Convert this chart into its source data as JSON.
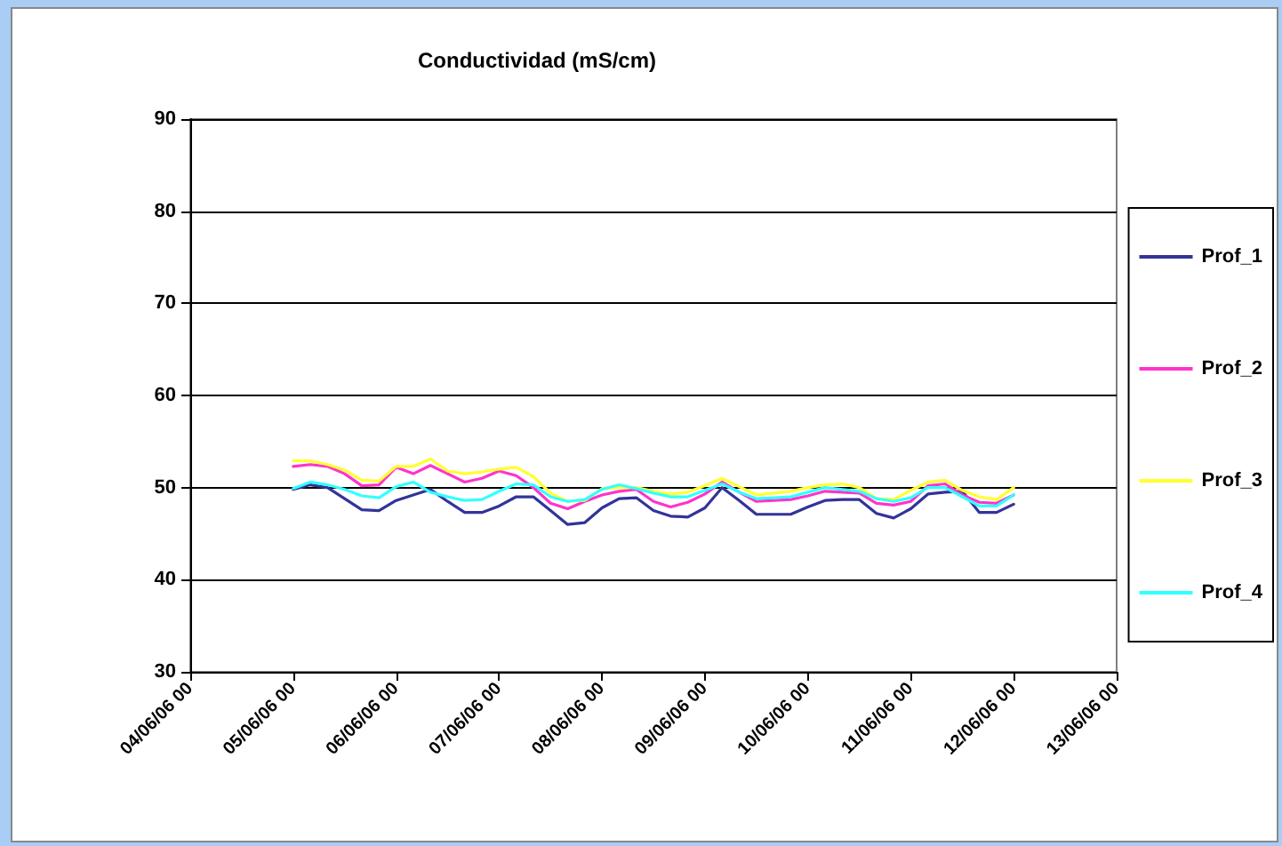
{
  "chart_data": {
    "type": "line",
    "title": "Conductividad (mS/cm)",
    "x": [
      "--06-05T00:00",
      "--06-05T04:00",
      "--06-05T08:00",
      "--06-05T12:00",
      "--06-05T16:00",
      "--06-05T20:00",
      "--06-06T00:00",
      "--06-06T04:00",
      "--06-06T08:00",
      "--06-06T12:00",
      "--06-06T16:00",
      "--06-06T20:00",
      "--06-07T00:00",
      "--06-07T04:00",
      "--06-07T08:00",
      "--06-07T12:00",
      "--06-07T16:00",
      "--06-07T20:00",
      "--06-08T00:00",
      "--06-08T04:00",
      "--06-08T08:00",
      "--06-08T12:00",
      "--06-08T16:00",
      "--06-08T20:00",
      "--06-09T00:00",
      "--06-09T04:00",
      "--06-09T08:00",
      "--06-09T12:00",
      "--06-09T16:00",
      "--06-09T20:00",
      "--06-10T00:00",
      "--06-10T04:00",
      "--06-10T08:00",
      "--06-10T12:00",
      "--06-10T16:00",
      "--06-10T20:00",
      "--06-11T00:00",
      "--06-11T04:00",
      "--06-11T08:00",
      "--06-11T12:00",
      "--06-11T16:00",
      "--06-11T20:00",
      "--06-12T00:00"
    ],
    "series": [
      {
        "name": "Prof_1",
        "color": "#333399",
        "values": [
          49.8,
          50.3,
          50,
          48.8,
          47.6,
          47.5,
          48.6,
          49.2,
          49.8,
          48.5,
          47.3,
          47.3,
          48.0,
          49,
          49,
          47.5,
          46,
          46.2,
          47.8,
          48.8,
          48.9,
          47.5,
          46.9,
          46.8,
          47.8,
          50,
          48.6,
          47.1,
          47.1,
          47.1,
          47.9,
          48.6,
          48.7,
          48.7,
          47.2,
          46.7,
          47.7,
          49.3,
          49.5,
          49.6,
          47.3,
          47.3,
          48.2
        ]
      },
      {
        "name": "Prof_2",
        "color": "#ff33cc",
        "values": [
          52.3,
          52.5,
          52.3,
          51.5,
          50.2,
          50.3,
          52.2,
          51.5,
          52.4,
          51.5,
          50.6,
          51,
          51.8,
          51.3,
          50,
          48.3,
          47.7,
          48.5,
          49.2,
          49.6,
          49.8,
          48.5,
          47.9,
          48.4,
          49.3,
          50.6,
          49.5,
          48.5,
          48.6,
          48.7,
          49.1,
          49.6,
          49.5,
          49.4,
          48.3,
          48.1,
          48.5,
          50.2,
          50.4,
          49.2,
          48.4,
          48.3,
          49.2
        ]
      },
      {
        "name": "Prof_3",
        "color": "#ffff33",
        "values": [
          52.9,
          52.9,
          52.5,
          51.9,
          50.8,
          50.7,
          52.3,
          52.3,
          53.1,
          51.8,
          51.5,
          51.7,
          52,
          52.2,
          51.2,
          49.4,
          48.5,
          48.6,
          49.9,
          50,
          50,
          49.6,
          49.3,
          49.5,
          50.2,
          51,
          50.1,
          49.2,
          49.4,
          49.6,
          50,
          50.3,
          50.4,
          50,
          48.8,
          48.7,
          49.7,
          50.6,
          50.8,
          49.7,
          49,
          48.7,
          50
        ]
      },
      {
        "name": "Prof_4",
        "color": "#33ffff",
        "values": [
          49.9,
          50.6,
          50.3,
          49.8,
          49.1,
          48.9,
          50.1,
          50.6,
          49.5,
          49,
          48.6,
          48.7,
          49.6,
          50.4,
          50.3,
          49,
          48.5,
          48.7,
          49.8,
          50.3,
          49.9,
          49.4,
          49,
          49,
          49.7,
          50.4,
          49.5,
          48.8,
          48.9,
          49,
          49.5,
          50,
          49.8,
          49.6,
          48.8,
          48.5,
          48.9,
          50,
          50,
          49,
          48,
          48,
          49.2
        ]
      }
    ],
    "xlim": [
      "--06-04",
      "--06-13"
    ],
    "xticks": [
      {
        "value": "--06-04",
        "label": "04/06/06 00"
      },
      {
        "value": "--06-05",
        "label": "05/06/06 00"
      },
      {
        "value": "--06-06",
        "label": "06/06/06 00"
      },
      {
        "value": "--06-07",
        "label": "07/06/06 00"
      },
      {
        "value": "--06-08",
        "label": "08/06/06 00"
      },
      {
        "value": "--06-09",
        "label": "09/06/06 00"
      },
      {
        "value": "--06-10",
        "label": "10/06/06 00"
      },
      {
        "value": "--06-11",
        "label": "11/06/06 00"
      },
      {
        "value": "--06-12",
        "label": "12/06/06 00"
      },
      {
        "value": "--06-13",
        "label": "13/06/06 00"
      }
    ],
    "ylim": [
      30,
      90
    ],
    "yticks": [
      30,
      40,
      50,
      60,
      70,
      80,
      90
    ],
    "grid": "y",
    "legend": "right",
    "marker": "none",
    "line_style": "solid"
  }
}
